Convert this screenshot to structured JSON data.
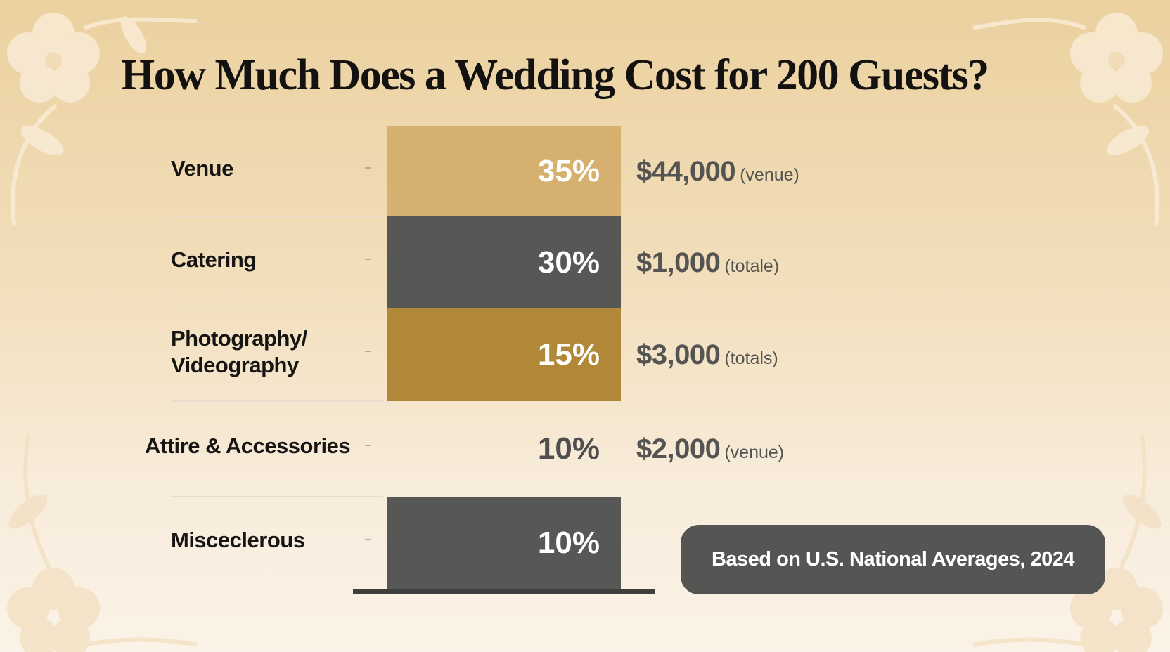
{
  "chart_data": {
    "type": "bar",
    "title": "How Much Does a Wedding Cost for 200 Guests?",
    "categories": [
      "Venue",
      "Catering",
      "Photography/ Videography",
      "Attire & Accessories",
      "Misceclerous"
    ],
    "values": [
      35,
      30,
      15,
      10,
      10
    ],
    "value_labels": [
      "35%",
      "30%",
      "15%",
      "10%",
      "10%"
    ],
    "costs": [
      "$44,000",
      "$1,000",
      "$3,000",
      "$2,000",
      ""
    ],
    "cost_notes": [
      "(venue)",
      "(totale)",
      "(totals)",
      "(venue)",
      ""
    ],
    "colors": [
      "#d6b06f",
      "#575755",
      "#b08838",
      "none",
      "#575755"
    ],
    "unit": "%",
    "note": "Based on U.S. National Averages, 2024"
  }
}
